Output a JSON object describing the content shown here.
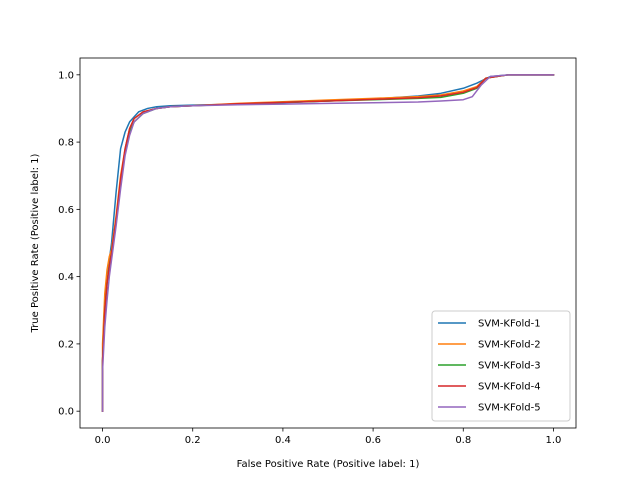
{
  "chart_data": {
    "type": "line",
    "title": "",
    "xlabel": "False Positive Rate (Positive label: 1)",
    "ylabel": "True Positive Rate (Positive label: 1)",
    "xlim": [
      -0.05,
      1.05
    ],
    "ylim": [
      -0.05,
      1.05
    ],
    "xticks": [
      0.0,
      0.2,
      0.4,
      0.6,
      0.8,
      1.0
    ],
    "yticks": [
      0.0,
      0.2,
      0.4,
      0.6,
      0.8,
      1.0
    ],
    "xtick_labels": [
      "0.0",
      "0.2",
      "0.4",
      "0.6",
      "0.8",
      "1.0"
    ],
    "ytick_labels": [
      "0.0",
      "0.2",
      "0.4",
      "0.6",
      "0.8",
      "1.0"
    ],
    "grid": false,
    "legend_position": "lower-right",
    "series": [
      {
        "name": "SVM-KFold-1",
        "color": "#1f77b4",
        "x": [
          0.0,
          0.0,
          0.005,
          0.01,
          0.015,
          0.02,
          0.03,
          0.04,
          0.05,
          0.06,
          0.08,
          0.1,
          0.12,
          0.15,
          0.2,
          0.3,
          0.4,
          0.5,
          0.6,
          0.7,
          0.75,
          0.8,
          0.83,
          0.86,
          0.9,
          1.0
        ],
        "y": [
          0.0,
          0.15,
          0.3,
          0.38,
          0.45,
          0.5,
          0.65,
          0.78,
          0.83,
          0.86,
          0.89,
          0.9,
          0.905,
          0.908,
          0.91,
          0.913,
          0.917,
          0.922,
          0.928,
          0.937,
          0.945,
          0.96,
          0.975,
          0.995,
          1.0,
          1.0
        ]
      },
      {
        "name": "SVM-KFold-2",
        "color": "#ff7f0e",
        "x": [
          0.0,
          0.0,
          0.005,
          0.01,
          0.015,
          0.02,
          0.03,
          0.04,
          0.05,
          0.06,
          0.07,
          0.09,
          0.12,
          0.15,
          0.2,
          0.3,
          0.4,
          0.5,
          0.6,
          0.7,
          0.75,
          0.8,
          0.83,
          0.85,
          0.9,
          1.0
        ],
        "y": [
          0.0,
          0.2,
          0.35,
          0.42,
          0.46,
          0.48,
          0.58,
          0.7,
          0.78,
          0.84,
          0.87,
          0.89,
          0.9,
          0.905,
          0.908,
          0.915,
          0.92,
          0.925,
          0.93,
          0.935,
          0.94,
          0.952,
          0.965,
          0.99,
          1.0,
          1.0
        ]
      },
      {
        "name": "SVM-KFold-3",
        "color": "#2ca02c",
        "x": [
          0.0,
          0.0,
          0.005,
          0.01,
          0.015,
          0.02,
          0.03,
          0.04,
          0.05,
          0.06,
          0.07,
          0.09,
          0.12,
          0.15,
          0.2,
          0.3,
          0.4,
          0.5,
          0.6,
          0.7,
          0.75,
          0.8,
          0.83,
          0.85,
          0.9,
          1.0
        ],
        "y": [
          0.0,
          0.15,
          0.3,
          0.38,
          0.43,
          0.47,
          0.56,
          0.68,
          0.77,
          0.83,
          0.86,
          0.885,
          0.9,
          0.905,
          0.908,
          0.913,
          0.918,
          0.922,
          0.926,
          0.93,
          0.933,
          0.945,
          0.96,
          0.99,
          1.0,
          1.0
        ]
      },
      {
        "name": "SVM-KFold-4",
        "color": "#d62728",
        "x": [
          0.0,
          0.0,
          0.005,
          0.01,
          0.015,
          0.02,
          0.03,
          0.04,
          0.05,
          0.06,
          0.07,
          0.09,
          0.12,
          0.15,
          0.2,
          0.3,
          0.4,
          0.5,
          0.6,
          0.7,
          0.75,
          0.8,
          0.83,
          0.85,
          0.9,
          1.0
        ],
        "y": [
          0.0,
          0.15,
          0.3,
          0.38,
          0.43,
          0.47,
          0.57,
          0.69,
          0.78,
          0.84,
          0.87,
          0.89,
          0.9,
          0.905,
          0.908,
          0.914,
          0.918,
          0.922,
          0.927,
          0.932,
          0.937,
          0.948,
          0.962,
          0.99,
          1.0,
          1.0
        ]
      },
      {
        "name": "SVM-KFold-5",
        "color": "#9467bd",
        "x": [
          0.0,
          0.0,
          0.005,
          0.01,
          0.015,
          0.02,
          0.03,
          0.04,
          0.05,
          0.06,
          0.07,
          0.09,
          0.12,
          0.15,
          0.2,
          0.3,
          0.4,
          0.5,
          0.6,
          0.7,
          0.75,
          0.8,
          0.82,
          0.84,
          0.86,
          0.9,
          1.0
        ],
        "y": [
          0.0,
          0.12,
          0.25,
          0.33,
          0.4,
          0.45,
          0.55,
          0.66,
          0.76,
          0.82,
          0.86,
          0.885,
          0.9,
          0.905,
          0.908,
          0.911,
          0.913,
          0.915,
          0.917,
          0.919,
          0.922,
          0.926,
          0.935,
          0.97,
          0.995,
          1.0,
          1.0
        ]
      }
    ]
  }
}
